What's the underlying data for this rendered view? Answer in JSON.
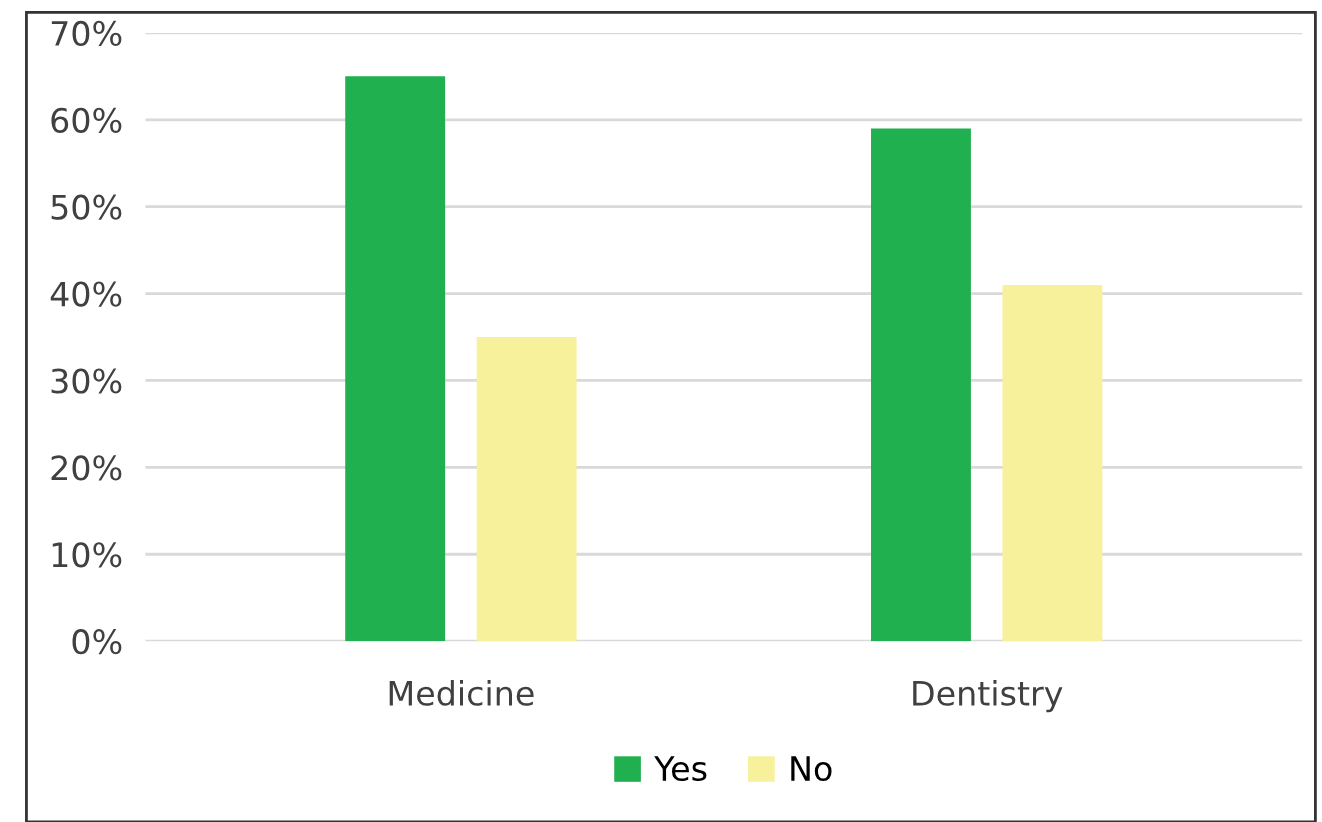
{
  "chart_data": {
    "type": "bar",
    "categories": [
      "Medicine",
      "Dentistry"
    ],
    "series": [
      {
        "name": "Yes",
        "color": "#21b04f",
        "values": [
          65,
          59
        ]
      },
      {
        "name": "No",
        "color": "#f6f19a",
        "values": [
          35,
          41
        ]
      }
    ],
    "ylim": [
      0,
      70
    ],
    "yticks": [
      {
        "value": 0,
        "label": "0%"
      },
      {
        "value": 10,
        "label": "10%"
      },
      {
        "value": 20,
        "label": "20%"
      },
      {
        "value": 30,
        "label": "30%"
      },
      {
        "value": 40,
        "label": "40%"
      },
      {
        "value": 50,
        "label": "50%"
      },
      {
        "value": 60,
        "label": "60%"
      },
      {
        "value": 70,
        "label": "70%"
      }
    ],
    "grid": "y",
    "legend": "bottom"
  }
}
